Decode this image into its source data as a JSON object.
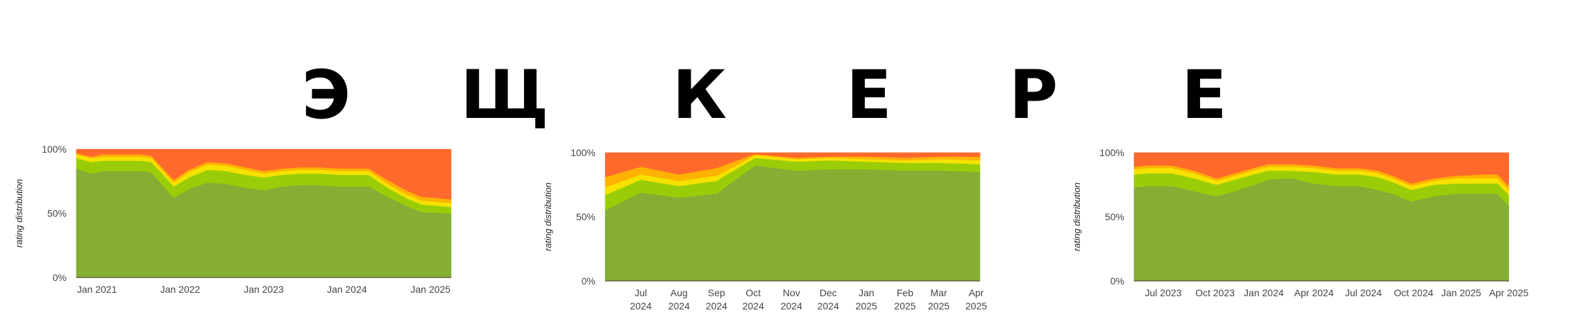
{
  "title_letters": [
    "Э",
    "Щ",
    "К",
    "Е",
    "Р",
    "Е"
  ],
  "colors": {
    "dark_green": "#86ad34",
    "light_green": "#9acd08",
    "yellow": "#f5e200",
    "orange_light": "#ffb300",
    "orange_dark": "#ff6a2c"
  },
  "chart_data": [
    {
      "type": "area",
      "stacked": true,
      "ylabel": "rating distribution",
      "yticks": [
        "0%",
        "50%",
        "100%"
      ],
      "ylim": [
        0,
        100
      ],
      "xlim": [
        0,
        1
      ],
      "xticks": [
        {
          "at": 0.055,
          "label": "Jan 2021"
        },
        {
          "at": 0.277,
          "label": "Jan 2022"
        },
        {
          "at": 0.5,
          "label": "Jan 2023"
        },
        {
          "at": 0.722,
          "label": "Jan 2024"
        },
        {
          "at": 0.945,
          "label": "Jan 2025"
        }
      ],
      "x": [
        0,
        0.04,
        0.07,
        0.12,
        0.17,
        0.2,
        0.26,
        0.3,
        0.35,
        0.4,
        0.45,
        0.5,
        0.55,
        0.6,
        0.65,
        0.7,
        0.74,
        0.78,
        0.83,
        0.88,
        0.92,
        1
      ],
      "series": [
        {
          "color": "#86ad34",
          "values": [
            85,
            81,
            83,
            83,
            83,
            82,
            62,
            69,
            74,
            73,
            70,
            68,
            71,
            72,
            72,
            71,
            71,
            71,
            63,
            56,
            51,
            50
          ]
        },
        {
          "color": "#9acd08",
          "values": [
            8,
            9,
            8,
            8,
            8,
            8,
            9,
            9,
            10,
            10,
            10,
            10,
            9,
            9,
            9,
            9,
            9,
            9,
            7,
            6,
            6,
            5
          ]
        },
        {
          "color": "#f5e200",
          "values": [
            3,
            3,
            3,
            3,
            3,
            3,
            3,
            4,
            4,
            4,
            4,
            3,
            3,
            3,
            3,
            3,
            3,
            3,
            3,
            3,
            3,
            3
          ]
        },
        {
          "color": "#ffb300",
          "values": [
            1,
            1,
            2,
            2,
            2,
            2,
            2,
            2,
            2,
            2,
            2,
            2,
            2,
            2,
            2,
            2,
            2,
            2,
            3,
            3,
            3,
            3
          ]
        },
        {
          "color": "#ff6a2c",
          "values": [
            3,
            6,
            4,
            4,
            4,
            5,
            24,
            16,
            10,
            11,
            14,
            17,
            15,
            14,
            14,
            15,
            15,
            15,
            24,
            32,
            37,
            39
          ]
        }
      ]
    },
    {
      "type": "area",
      "stacked": true,
      "ylabel": "rating distribution",
      "yticks": [
        "0%",
        "50%",
        "100%"
      ],
      "ylim": [
        0,
        100
      ],
      "xlim": [
        0,
        1
      ],
      "xticks": [
        {
          "at": 0.095,
          "label": [
            "Jul",
            "2024"
          ]
        },
        {
          "at": 0.197,
          "label": [
            "Aug",
            "2024"
          ]
        },
        {
          "at": 0.297,
          "label": [
            "Sep",
            "2024"
          ]
        },
        {
          "at": 0.395,
          "label": [
            "Oct",
            "2024"
          ]
        },
        {
          "at": 0.497,
          "label": [
            "Nov",
            "2024"
          ]
        },
        {
          "at": 0.595,
          "label": [
            "Dec",
            "2024"
          ]
        },
        {
          "at": 0.697,
          "label": [
            "Jan",
            "2025"
          ]
        },
        {
          "at": 0.8,
          "label": [
            "Feb",
            "2025"
          ]
        },
        {
          "at": 0.89,
          "label": [
            "Mar",
            "2025"
          ]
        },
        {
          "at": 0.99,
          "label": [
            "Apr",
            "2025"
          ]
        }
      ],
      "x": [
        0,
        0.095,
        0.197,
        0.297,
        0.4,
        0.51,
        0.6,
        0.7,
        0.8,
        0.9,
        1
      ],
      "series": [
        {
          "color": "#86ad34",
          "values": [
            55,
            69,
            65,
            68,
            90,
            86,
            87,
            87,
            86,
            86,
            85
          ]
        },
        {
          "color": "#9acd08",
          "values": [
            12,
            10,
            9,
            10,
            6,
            7,
            7,
            6,
            6,
            6,
            6
          ]
        },
        {
          "color": "#f5e200",
          "values": [
            6,
            4,
            4,
            4,
            2,
            2,
            2,
            2,
            2,
            3,
            3
          ]
        },
        {
          "color": "#ffb300",
          "values": [
            8,
            6,
            5,
            6,
            1,
            1,
            1,
            2,
            2,
            2,
            3
          ]
        },
        {
          "color": "#ff6a2c",
          "values": [
            19,
            11,
            17,
            12,
            1,
            4,
            3,
            3,
            4,
            3,
            3
          ]
        }
      ]
    },
    {
      "type": "area",
      "stacked": true,
      "ylabel": "rating distribution",
      "yticks": [
        "0%",
        "50%",
        "100%"
      ],
      "ylim": [
        0,
        100
      ],
      "xlim": [
        0,
        1
      ],
      "xticks": [
        {
          "at": 0.078,
          "label": "Jul 2023"
        },
        {
          "at": 0.216,
          "label": "Oct 2023"
        },
        {
          "at": 0.346,
          "label": "Jan 2024"
        },
        {
          "at": 0.48,
          "label": "Apr 2024"
        },
        {
          "at": 0.612,
          "label": "Jul 2024"
        },
        {
          "at": 0.746,
          "label": "Oct 2024"
        },
        {
          "at": 0.873,
          "label": "Jan 2025"
        },
        {
          "at": 1.0,
          "label": "Apr 2025"
        }
      ],
      "x": [
        0,
        0.04,
        0.1,
        0.16,
        0.22,
        0.27,
        0.33,
        0.36,
        0.42,
        0.48,
        0.54,
        0.6,
        0.65,
        0.69,
        0.74,
        0.8,
        0.86,
        0.93,
        0.97,
        1
      ],
      "series": [
        {
          "color": "#86ad34",
          "values": [
            73,
            74,
            74,
            70,
            66,
            70,
            76,
            79,
            80,
            76,
            74,
            74,
            71,
            68,
            62,
            66,
            68,
            68,
            68,
            59
          ]
        },
        {
          "color": "#9acd08",
          "values": [
            10,
            10,
            10,
            10,
            9,
            9,
            8,
            7,
            6,
            9,
            9,
            9,
            10,
            9,
            9,
            9,
            8,
            8,
            8,
            8
          ]
        },
        {
          "color": "#f5e200",
          "values": [
            4,
            4,
            4,
            4,
            3,
            3,
            3,
            3,
            3,
            3,
            3,
            3,
            3,
            3,
            3,
            3,
            4,
            4,
            4,
            4
          ]
        },
        {
          "color": "#ffb300",
          "values": [
            2,
            2,
            2,
            2,
            2,
            2,
            2,
            2,
            2,
            2,
            2,
            2,
            2,
            2,
            2,
            2,
            2,
            3,
            3,
            3
          ]
        },
        {
          "color": "#ff6a2c",
          "values": [
            11,
            10,
            10,
            14,
            20,
            16,
            11,
            9,
            9,
            10,
            12,
            12,
            14,
            18,
            24,
            20,
            18,
            17,
            17,
            26
          ]
        }
      ]
    }
  ]
}
